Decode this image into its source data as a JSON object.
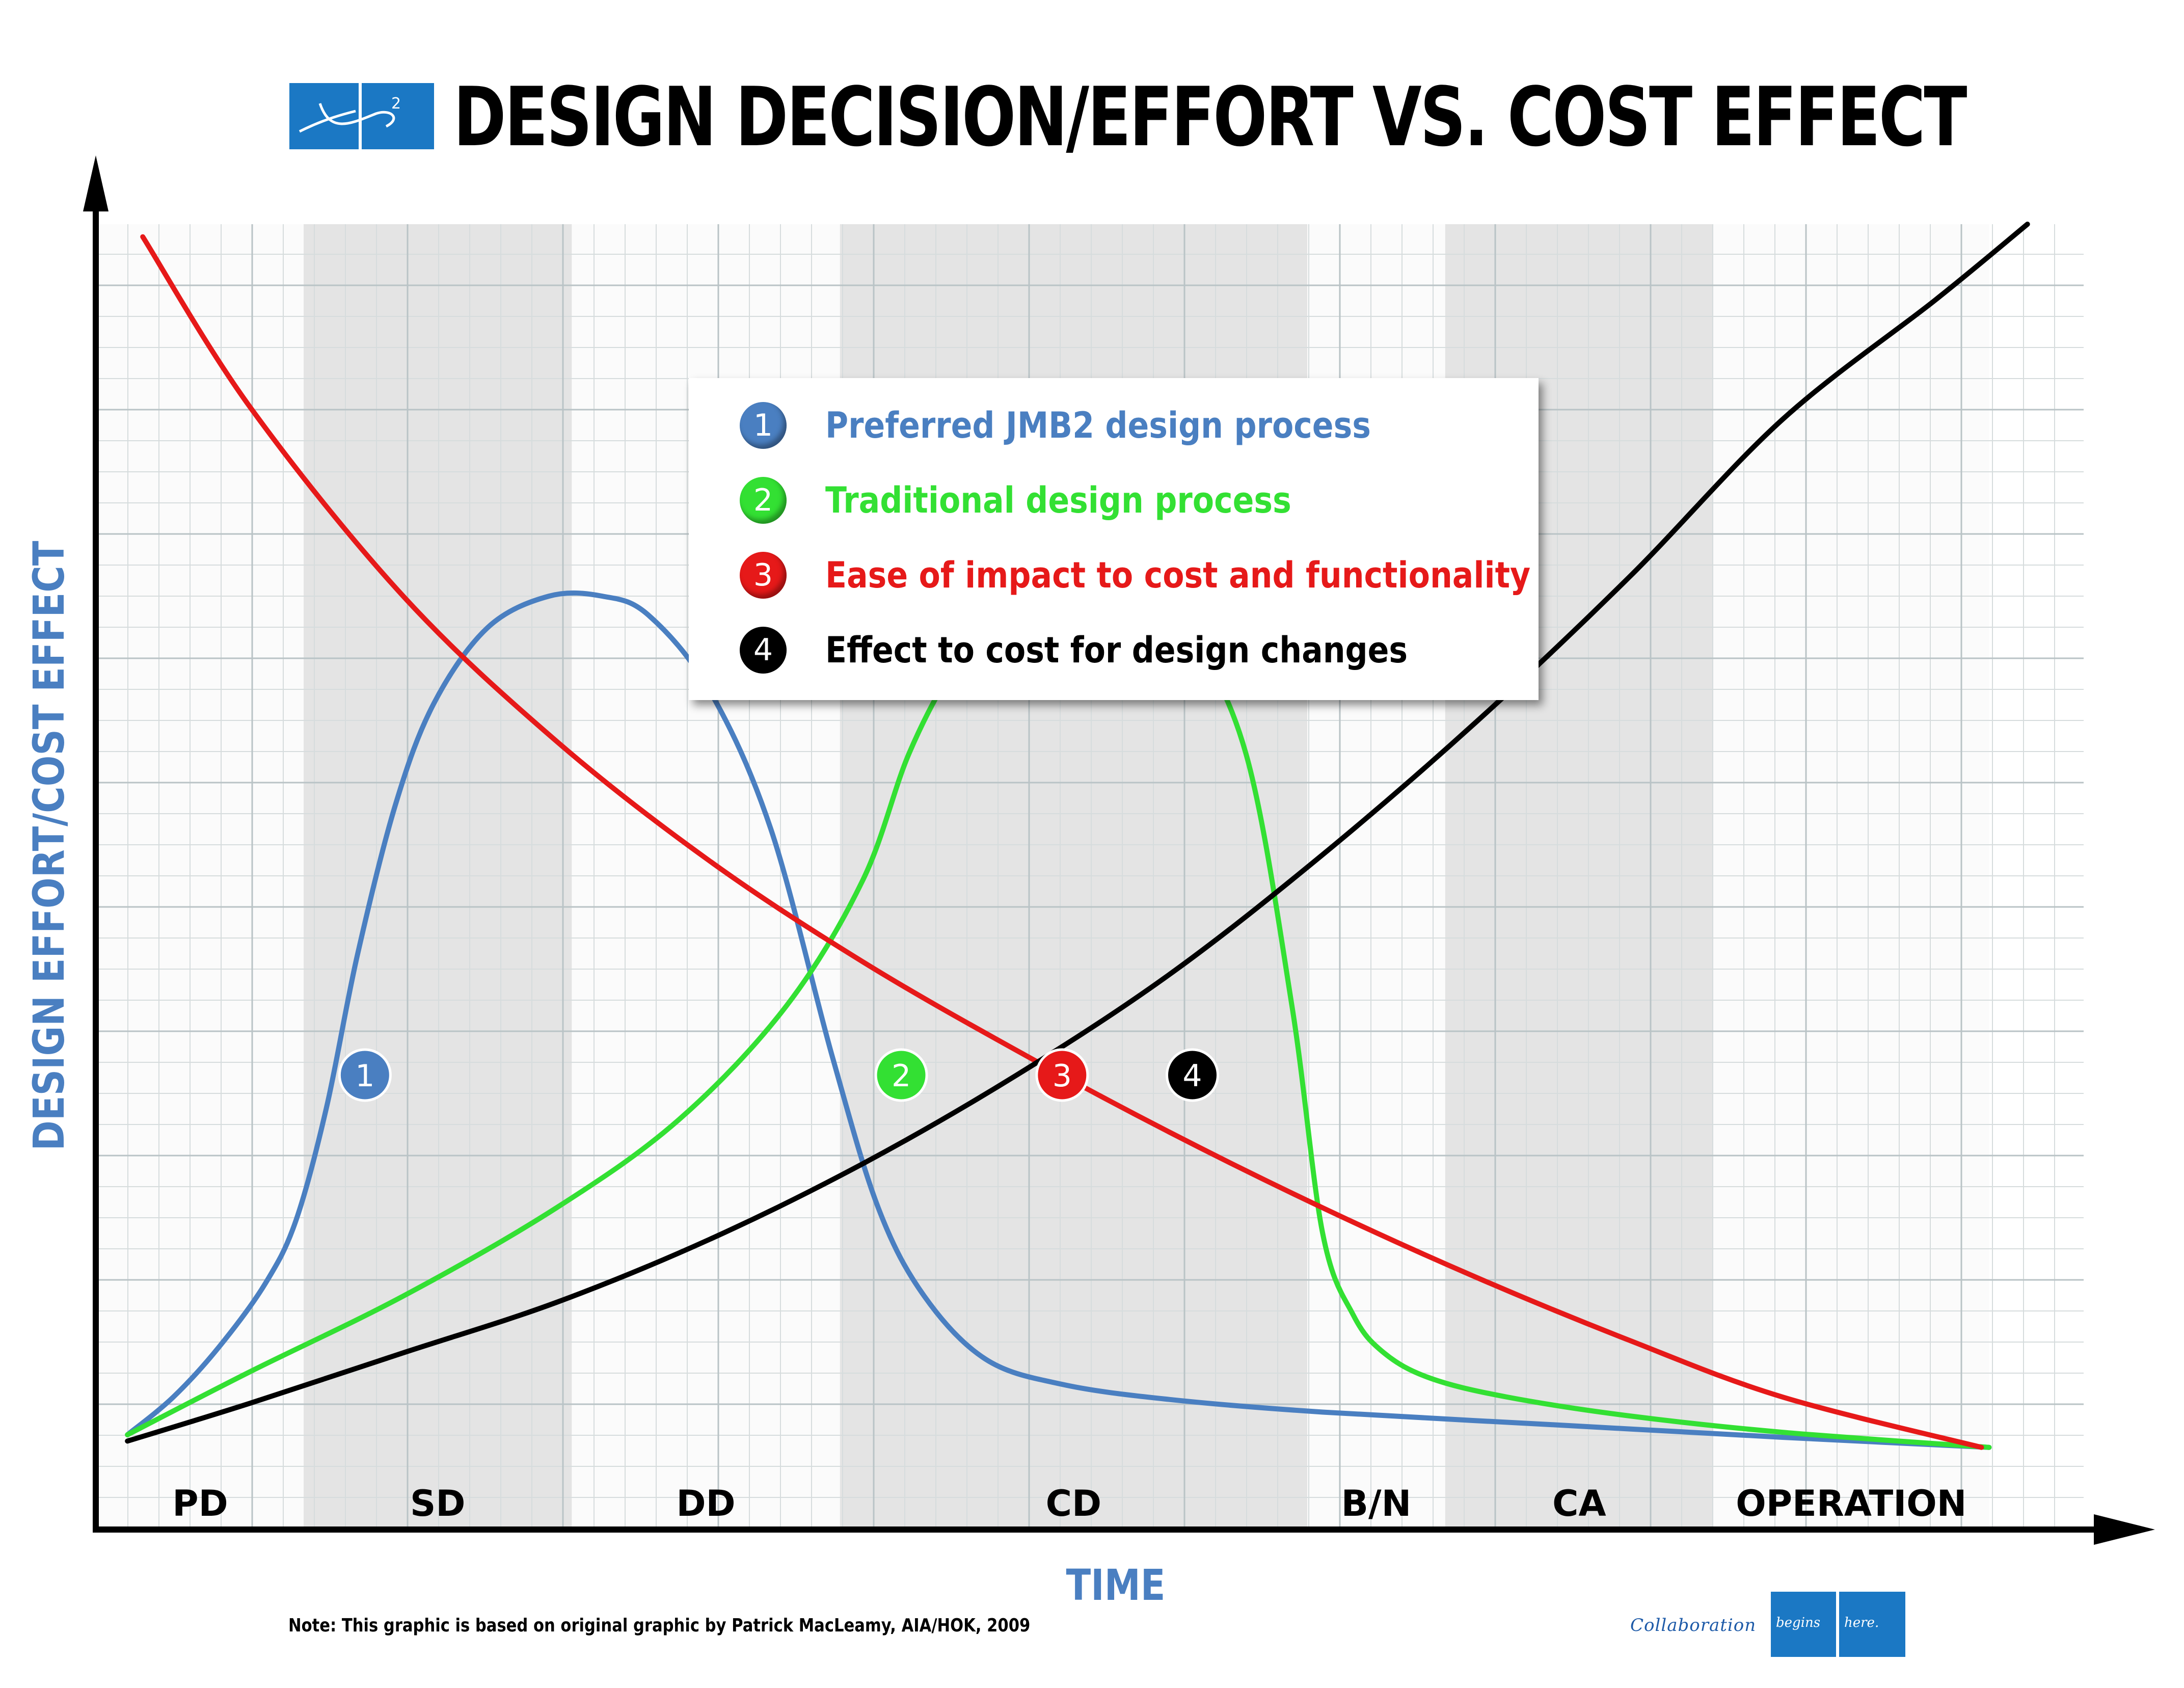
{
  "header": {
    "logo_text": "JMB2",
    "title": "DESIGN DECISION/EFFORT VS. COST EFFECT"
  },
  "legend": {
    "items": [
      {
        "num": "1",
        "label": "Preferred JMB2 design process",
        "color": "#4a7fc1"
      },
      {
        "num": "2",
        "label": "Traditional design process",
        "color": "#33e033"
      },
      {
        "num": "3",
        "label": "Ease of impact to cost and functionality",
        "color": "#e61919"
      },
      {
        "num": "4",
        "label": "Effect to cost for design changes",
        "color": "#000000"
      }
    ]
  },
  "chart_data": {
    "type": "line",
    "xlabel": "TIME",
    "ylabel": "DESIGN EFFORT/COST EFFECT",
    "x_unit": "project time (phases, 0 = start)",
    "xlim": [
      0,
      13
    ],
    "ylim": [
      0,
      10
    ],
    "grid": true,
    "y_ticks_shown": false,
    "legend_position": "center-top",
    "phases": [
      {
        "label": "PD",
        "start": 0,
        "end": 1.35,
        "shaded": false
      },
      {
        "label": "SD",
        "start": 1.35,
        "end": 3.1,
        "shaded": true
      },
      {
        "label": "DD",
        "start": 3.1,
        "end": 4.85,
        "shaded": false
      },
      {
        "label": "CD",
        "start": 4.85,
        "end": 7.9,
        "shaded": true
      },
      {
        "label": "B/N",
        "start": 7.9,
        "end": 8.8,
        "shaded": false
      },
      {
        "label": "CA",
        "start": 8.8,
        "end": 10.55,
        "shaded": true
      },
      {
        "label": "OPERATION",
        "start": 10.55,
        "end": 12.35,
        "shaded": false
      }
    ],
    "series": [
      {
        "name": "Preferred JMB2 design process",
        "marker": "1",
        "color": "#4a7fc1",
        "marker_x": 1.75,
        "x": [
          0.2,
          0.5,
          0.8,
          1.1,
          1.3,
          1.5,
          1.7,
          1.95,
          2.2,
          2.55,
          2.95,
          3.3,
          3.6,
          4.0,
          4.4,
          4.8,
          5.1,
          5.4,
          5.8,
          6.3,
          7.0,
          8.0,
          9.5,
          11.0,
          12.35
        ],
        "y": [
          0.4,
          0.7,
          1.1,
          1.6,
          2.1,
          3.0,
          4.2,
          5.4,
          6.2,
          6.8,
          7.05,
          7.05,
          6.9,
          6.3,
          5.2,
          3.4,
          2.2,
          1.5,
          1.0,
          0.8,
          0.68,
          0.58,
          0.48,
          0.38,
          0.3
        ]
      },
      {
        "name": "Traditional design process",
        "marker": "2",
        "color": "#33e033",
        "marker_x": 5.25,
        "x": [
          0.2,
          1.0,
          2.0,
          3.0,
          3.8,
          4.5,
          5.0,
          5.3,
          5.6,
          5.9,
          6.3,
          6.7,
          7.1,
          7.5,
          7.8,
          8.0,
          8.2,
          8.4,
          8.7,
          9.2,
          10.0,
          11.0,
          12.35
        ],
        "y": [
          0.4,
          0.9,
          1.5,
          2.2,
          2.9,
          3.8,
          4.8,
          5.8,
          6.5,
          6.95,
          7.15,
          7.1,
          6.8,
          5.8,
          3.8,
          2.0,
          1.35,
          1.05,
          0.85,
          0.7,
          0.55,
          0.42,
          0.3
        ]
      },
      {
        "name": "Ease of impact to cost and functionality",
        "marker": "3",
        "color": "#e61919",
        "marker_x": 6.3,
        "x": [
          0.3,
          1.0,
          2.0,
          3.0,
          4.0,
          5.0,
          6.0,
          7.0,
          8.0,
          9.0,
          10.0,
          11.0,
          12.3
        ],
        "y": [
          9.9,
          8.55,
          7.05,
          5.9,
          4.95,
          4.15,
          3.45,
          2.8,
          2.2,
          1.65,
          1.15,
          0.7,
          0.3
        ]
      },
      {
        "name": "Effect to cost for design changes",
        "marker": "4",
        "color": "#000000",
        "marker_x": 7.15,
        "x": [
          0.2,
          1.0,
          2.0,
          3.0,
          4.0,
          5.0,
          6.0,
          7.0,
          8.0,
          9.0,
          10.0,
          11.0,
          12.0,
          12.6
        ],
        "y": [
          0.35,
          0.65,
          1.05,
          1.45,
          1.95,
          2.55,
          3.25,
          4.05,
          5.0,
          6.05,
          7.2,
          8.45,
          9.4,
          10.0
        ]
      }
    ]
  },
  "note": "Note:  This graphic is based on original graphic by Patrick MacLeamy, AIA/HOK, 2009",
  "footer": {
    "part1": "Collaboration",
    "part2": "begins",
    "part3": "here."
  }
}
